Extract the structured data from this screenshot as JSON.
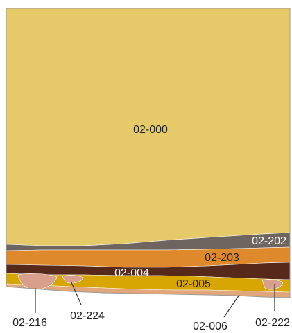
{
  "diagram": {
    "layers": [
      {
        "id": "02-000",
        "color": "#E6C968"
      },
      {
        "id": "02-202",
        "color": "#6E6560"
      },
      {
        "id": "02-203",
        "color": "#DE8A2C"
      },
      {
        "id": "02-004",
        "color": "#56291A"
      },
      {
        "id": "02-005",
        "color": "#D7A602"
      },
      {
        "id": "02-006",
        "color": "#E1A67A"
      },
      {
        "id": "02-216",
        "color": "#D8A08A"
      },
      {
        "id": "02-224",
        "color": "#D8A08A"
      },
      {
        "id": "02-222",
        "color": "#D8A08A"
      }
    ],
    "labels": {
      "l000": "02-000",
      "l202": "02-202",
      "l203": "02-203",
      "l004": "02-004",
      "l005": "02-005",
      "l006": "02-006",
      "l216": "02-216",
      "l224": "02-224",
      "l222": "02-222"
    },
    "colors": {
      "outline": "#9A9A9A",
      "label_dark": "#222222",
      "label_light": "#FFFFFF",
      "leader": "#333333"
    }
  }
}
